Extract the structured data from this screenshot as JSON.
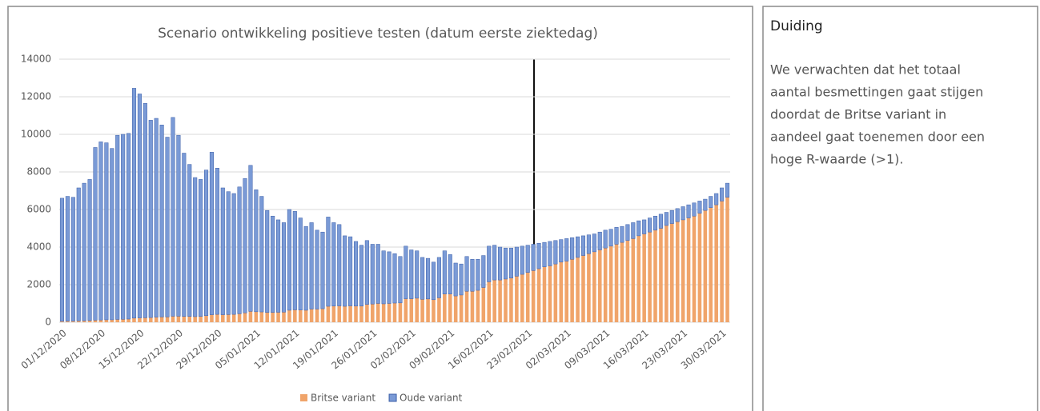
{
  "chart_data": {
    "type": "stacked_bar",
    "title": "Scenario ontwikkeling positieve testen (datum eerste ziektedag)",
    "categories": [
      "01/12/2020",
      null,
      null,
      null,
      null,
      null,
      null,
      "08/12/2020",
      null,
      null,
      null,
      null,
      null,
      null,
      "15/12/2020",
      null,
      null,
      null,
      null,
      null,
      null,
      "22/12/2020",
      null,
      null,
      null,
      null,
      null,
      null,
      "29/12/2020",
      null,
      null,
      null,
      null,
      null,
      null,
      "05/01/2021",
      null,
      null,
      null,
      null,
      null,
      null,
      "12/01/2021",
      null,
      null,
      null,
      null,
      null,
      null,
      "19/01/2021",
      null,
      null,
      null,
      null,
      null,
      null,
      "26/01/2021",
      null,
      null,
      null,
      null,
      null,
      null,
      "02/02/2021",
      null,
      null,
      null,
      null,
      null,
      null,
      "09/02/2021",
      null,
      null,
      null,
      null,
      null,
      null,
      "16/02/2021",
      null,
      null,
      null,
      null,
      null,
      null,
      "23/02/2021",
      null,
      null,
      null,
      null,
      null,
      null,
      "02/03/2021",
      null,
      null,
      null,
      null,
      null,
      null,
      "09/03/2021",
      null,
      null,
      null,
      null,
      null,
      null,
      "16/03/2021",
      null,
      null,
      null,
      null,
      null,
      null,
      "23/03/2021",
      null,
      null,
      null,
      null,
      null,
      null,
      "30/03/2021",
      null
    ],
    "series": [
      {
        "name": "Britse variant",
        "color": "#f0a46a",
        "values": [
          50,
          60,
          60,
          70,
          80,
          90,
          110,
          120,
          130,
          130,
          150,
          160,
          170,
          220,
          230,
          240,
          250,
          270,
          280,
          280,
          320,
          320,
          310,
          310,
          300,
          310,
          350,
          400,
          420,
          400,
          410,
          420,
          450,
          500,
          580,
          560,
          550,
          520,
          520,
          530,
          540,
          640,
          660,
          650,
          640,
          700,
          700,
          720,
          850,
          860,
          870,
          850,
          870,
          860,
          860,
          950,
          970,
          1000,
          980,
          1000,
          1020,
          1030,
          1250,
          1250,
          1280,
          1220,
          1240,
          1200,
          1300,
          1500,
          1500,
          1400,
          1450,
          1650,
          1650,
          1700,
          1850,
          2150,
          2250,
          2250,
          2300,
          2350,
          2450,
          2550,
          2650,
          2750,
          2850,
          2950,
          3000,
          3100,
          3200,
          3250,
          3350,
          3450,
          3550,
          3650,
          3750,
          3850,
          3950,
          4050,
          4150,
          4250,
          4350,
          4450,
          4600,
          4700,
          4800,
          4900,
          5000,
          5150,
          5250,
          5350,
          5450,
          5550,
          5650,
          5800,
          5950,
          6100,
          6250,
          6450,
          6650
        ]
      },
      {
        "name": "Oude variant",
        "color": "#7a9ad6",
        "values": [
          6550,
          6640,
          6590,
          7080,
          7320,
          7510,
          9190,
          9480,
          9420,
          9120,
          9800,
          9840,
          9880,
          12230,
          11920,
          11410,
          10500,
          10580,
          10220,
          9570,
          10580,
          9630,
          8690,
          8090,
          7400,
          7290,
          7750,
          8650,
          7780,
          6750,
          6540,
          6430,
          6750,
          7150,
          7770,
          6490,
          6150,
          5430,
          5130,
          4920,
          4760,
          5360,
          5240,
          4900,
          4460,
          4600,
          4200,
          4080,
          4750,
          4440,
          4330,
          3750,
          3680,
          3440,
          3240,
          3400,
          3180,
          3150,
          2820,
          2750,
          2630,
          2470,
          2800,
          2600,
          2520,
          2230,
          2160,
          2000,
          2150,
          2300,
          2100,
          1750,
          1650,
          1850,
          1700,
          1650,
          1700,
          1900,
          1850,
          1750,
          1650,
          1600,
          1550,
          1500,
          1450,
          1400,
          1350,
          1300,
          1300,
          1250,
          1200,
          1200,
          1150,
          1100,
          1050,
          1000,
          950,
          950,
          950,
          900,
          900,
          850,
          850,
          850,
          800,
          750,
          750,
          750,
          750,
          700,
          700,
          700,
          700,
          700,
          700,
          650,
          600,
          600,
          600,
          700,
          750
        ]
      }
    ],
    "ylim": [
      0,
      14000
    ],
    "yticks": [
      0,
      2000,
      4000,
      6000,
      8000,
      10000,
      12000,
      14000
    ],
    "grid": true
  },
  "panel": {
    "title": "Duiding",
    "text": [
      "We verwachten dat het totaal",
      "aantal besmettingen gaat stijgen",
      "doordat de Britse variant in",
      "aandeel gaat toenemen door een",
      "hoge R-waarde (>1)."
    ]
  }
}
